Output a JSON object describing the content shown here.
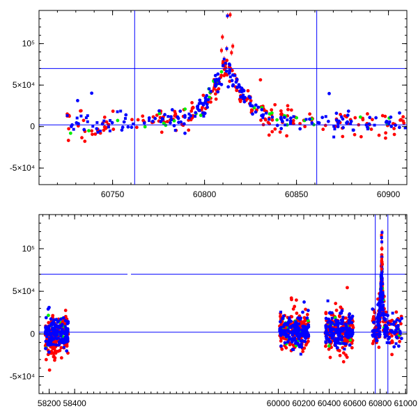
{
  "chart_data": [
    {
      "type": "scatter",
      "title": "",
      "xlabel": "",
      "ylabel": "",
      "xlim": [
        60710,
        60910
      ],
      "ylim": [
        -70000,
        140000
      ],
      "x_ticks": [
        {
          "value": 60750,
          "label": "60750"
        },
        {
          "value": 60800,
          "label": "60800"
        },
        {
          "value": 60850,
          "label": "60850"
        },
        {
          "value": 60900,
          "label": "60900"
        }
      ],
      "y_ticks": [
        {
          "value": -50000,
          "label": "-5×10⁴"
        },
        {
          "value": 0,
          "label": "0"
        },
        {
          "value": 50000,
          "label": "5×10⁴"
        },
        {
          "value": 100000,
          "label": "10⁵"
        }
      ],
      "reference_lines": {
        "horizontal": [
          70000,
          2000
        ],
        "vertical": [
          60762,
          60861
        ]
      },
      "series": [
        {
          "name": "red",
          "color": "#ff0000"
        },
        {
          "name": "green",
          "color": "#00ee00"
        },
        {
          "name": "blue",
          "color": "#0000ff"
        }
      ],
      "peak": {
        "x": 60812,
        "y": 70000,
        "width_days": 9
      },
      "baseline": 3000,
      "segments": [
        [
          60725,
          60910
        ]
      ]
    },
    {
      "type": "scatter",
      "title": "",
      "xlabel": "",
      "ylabel": "",
      "xlim": [
        58120,
        61010
      ],
      "ylim": [
        -70000,
        140000
      ],
      "axis_break": {
        "between": [
          58400,
          60000
        ]
      },
      "x_ticks": [
        {
          "value": 58200,
          "label": "58200"
        },
        {
          "value": 58400,
          "label": "58400"
        },
        {
          "value": 60000,
          "label": "60000"
        },
        {
          "value": 60200,
          "label": "60200"
        },
        {
          "value": 60400,
          "label": "60400"
        },
        {
          "value": 60600,
          "label": "60600"
        },
        {
          "value": 60800,
          "label": "60800"
        },
        {
          "value": 61000,
          "label": "61000"
        }
      ],
      "y_ticks": [
        {
          "value": -50000,
          "label": "-5×10⁴"
        },
        {
          "value": 0,
          "label": "0"
        },
        {
          "value": 50000,
          "label": "5×10⁴"
        },
        {
          "value": 100000,
          "label": "10⁵"
        }
      ],
      "reference_lines": {
        "horizontal": [
          70000,
          2000
        ],
        "vertical": [
          60762,
          60861
        ]
      },
      "series": [
        {
          "name": "red",
          "color": "#ff0000"
        },
        {
          "name": "green",
          "color": "#00ee00"
        },
        {
          "name": "blue",
          "color": "#0000ff"
        }
      ],
      "peak": {
        "x": 60812,
        "y": 70000,
        "width_days": 9
      },
      "baseline": 3000,
      "segments": [
        [
          58170,
          58350
        ],
        [
          60010,
          60240
        ],
        [
          60370,
          60590
        ],
        [
          60740,
          60970
        ]
      ]
    }
  ]
}
